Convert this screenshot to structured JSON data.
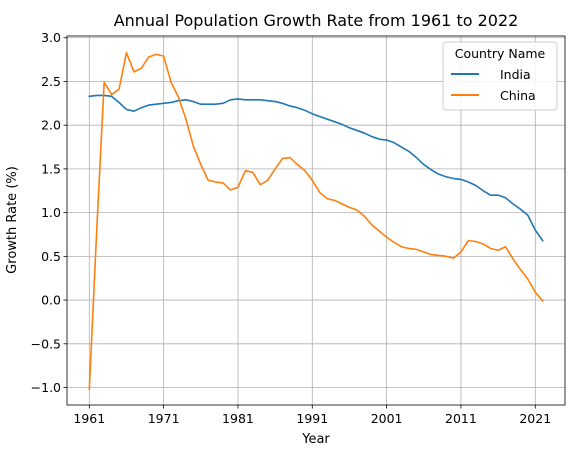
{
  "chart_data": {
    "type": "line",
    "title": "Annual Population Growth Rate from 1961 to 2022",
    "xlabel": "Year",
    "ylabel": "Growth Rate (%)",
    "xlim": [
      1957.95,
      1965.05
    ],
    "ylim": [
      -1.2,
      3.02
    ],
    "x_ticks": [
      1961,
      1971,
      1981,
      1991,
      2001,
      2011,
      2021
    ],
    "x_tick_labels": [
      "1961",
      "1971",
      "1981",
      "1991",
      "2001",
      "2011",
      "2021"
    ],
    "y_ticks": [
      -1.0,
      -0.5,
      0.0,
      0.5,
      1.0,
      1.5,
      2.0,
      2.5,
      3.0
    ],
    "y_tick_labels": [
      "−1.0",
      "−0.5",
      "0.0",
      "0.5",
      "1.0",
      "1.5",
      "2.0",
      "2.5",
      "3.0"
    ],
    "grid": true,
    "legend": {
      "title": "Country Name",
      "placement": "top-right"
    },
    "x": [
      1961,
      1962,
      1963,
      1964,
      1965,
      1966,
      1967,
      1968,
      1969,
      1970,
      1971,
      1972,
      1973,
      1974,
      1975,
      1976,
      1977,
      1978,
      1979,
      1980,
      1981,
      1982,
      1983,
      1984,
      1985,
      1986,
      1987,
      1988,
      1989,
      1990,
      1991,
      1992,
      1993,
      1994,
      1995,
      1996,
      1997,
      1998,
      1999,
      2000,
      2001,
      2002,
      2003,
      2004,
      2005,
      2006,
      2007,
      2008,
      2009,
      2010,
      2011,
      2012,
      2013,
      2014,
      2015,
      2016,
      2017,
      2018,
      2019,
      2020,
      2021,
      2022
    ],
    "series": [
      {
        "name": "India",
        "color": "#1f77b4",
        "values": [
          2.33,
          2.34,
          2.34,
          2.33,
          2.26,
          2.18,
          2.16,
          2.2,
          2.23,
          2.24,
          2.25,
          2.26,
          2.28,
          2.29,
          2.27,
          2.24,
          2.24,
          2.24,
          2.25,
          2.29,
          2.3,
          2.29,
          2.29,
          2.29,
          2.28,
          2.27,
          2.25,
          2.22,
          2.2,
          2.17,
          2.13,
          2.1,
          2.07,
          2.04,
          2.01,
          1.97,
          1.94,
          1.91,
          1.87,
          1.84,
          1.83,
          1.8,
          1.75,
          1.7,
          1.63,
          1.55,
          1.49,
          1.44,
          1.41,
          1.39,
          1.38,
          1.35,
          1.31,
          1.25,
          1.2,
          1.2,
          1.17,
          1.1,
          1.04,
          0.97,
          0.8,
          0.68
        ]
      },
      {
        "name": "China",
        "color": "#ff7f0e",
        "values": [
          -1.02,
          0.8,
          2.49,
          2.35,
          2.41,
          2.83,
          2.61,
          2.65,
          2.78,
          2.81,
          2.79,
          2.49,
          2.32,
          2.07,
          1.76,
          1.55,
          1.37,
          1.35,
          1.34,
          1.26,
          1.29,
          1.48,
          1.46,
          1.32,
          1.37,
          1.5,
          1.62,
          1.63,
          1.55,
          1.48,
          1.37,
          1.23,
          1.16,
          1.14,
          1.1,
          1.06,
          1.03,
          0.96,
          0.86,
          0.79,
          0.72,
          0.66,
          0.61,
          0.59,
          0.58,
          0.55,
          0.52,
          0.51,
          0.5,
          0.48,
          0.55,
          0.68,
          0.67,
          0.64,
          0.59,
          0.57,
          0.61,
          0.47,
          0.35,
          0.24,
          0.09,
          -0.01
        ]
      }
    ]
  }
}
